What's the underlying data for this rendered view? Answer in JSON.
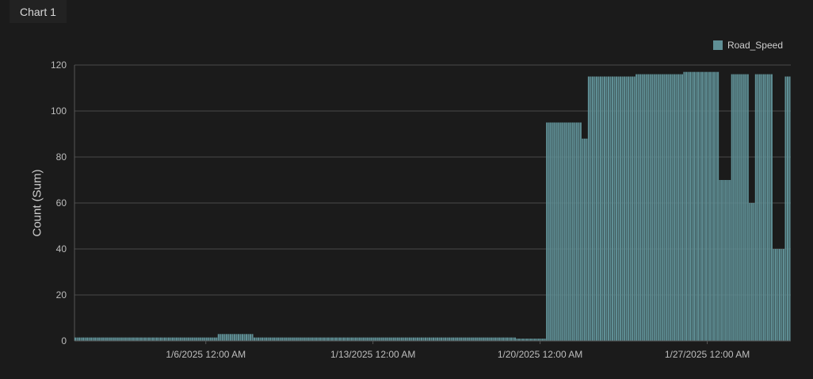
{
  "tab": {
    "title": "Chart 1"
  },
  "chart_data": {
    "type": "bar",
    "title": "",
    "xlabel": "",
    "ylabel": "Count (Sum)",
    "ylim": [
      0,
      120
    ],
    "yticks": [
      0,
      20,
      40,
      60,
      80,
      100,
      120
    ],
    "xlim": [
      "2025-01-01T00:00",
      "2025-01-31T00:00"
    ],
    "xticks": [
      {
        "date": "2025-01-06T12:00",
        "label": "1/6/2025 12:00 AM"
      },
      {
        "date": "2025-01-13T12:00",
        "label": "1/13/2025 12:00 AM"
      },
      {
        "date": "2025-01-20T12:00",
        "label": "1/20/2025 12:00 AM"
      },
      {
        "date": "2025-01-27T12:00",
        "label": "1/27/2025 12:00 AM"
      }
    ],
    "grid": true,
    "legend_position": "top-right",
    "bar_interval_hours": 2,
    "series": [
      {
        "name": "Road_Speed",
        "color": "#5f8f95",
        "segments": [
          {
            "start": "2025-01-01T00:00",
            "end": "2025-01-07T00:00",
            "value": 1.5
          },
          {
            "start": "2025-01-07T00:00",
            "end": "2025-01-08T12:00",
            "value": 3
          },
          {
            "start": "2025-01-08T12:00",
            "end": "2025-01-19T12:00",
            "value": 1.5
          },
          {
            "start": "2025-01-19T12:00",
            "end": "2025-01-20T18:00",
            "value": 1
          },
          {
            "start": "2025-01-20T18:00",
            "end": "2025-01-22T06:00",
            "value": 95
          },
          {
            "start": "2025-01-22T06:00",
            "end": "2025-01-22T12:00",
            "value": 88
          },
          {
            "start": "2025-01-22T12:00",
            "end": "2025-01-24T12:00",
            "value": 115
          },
          {
            "start": "2025-01-24T12:00",
            "end": "2025-01-26T12:00",
            "value": 116
          },
          {
            "start": "2025-01-26T12:00",
            "end": "2025-01-28T00:00",
            "value": 117
          },
          {
            "start": "2025-01-28T00:00",
            "end": "2025-01-28T12:00",
            "value": 70
          },
          {
            "start": "2025-01-28T12:00",
            "end": "2025-01-29T06:00",
            "value": 116
          },
          {
            "start": "2025-01-29T06:00",
            "end": "2025-01-29T12:00",
            "value": 60
          },
          {
            "start": "2025-01-29T12:00",
            "end": "2025-01-30T06:00",
            "value": 116
          },
          {
            "start": "2025-01-30T06:00",
            "end": "2025-01-30T18:00",
            "value": 40
          },
          {
            "start": "2025-01-30T18:00",
            "end": "2025-01-31T00:00",
            "value": 115
          }
        ]
      }
    ]
  }
}
